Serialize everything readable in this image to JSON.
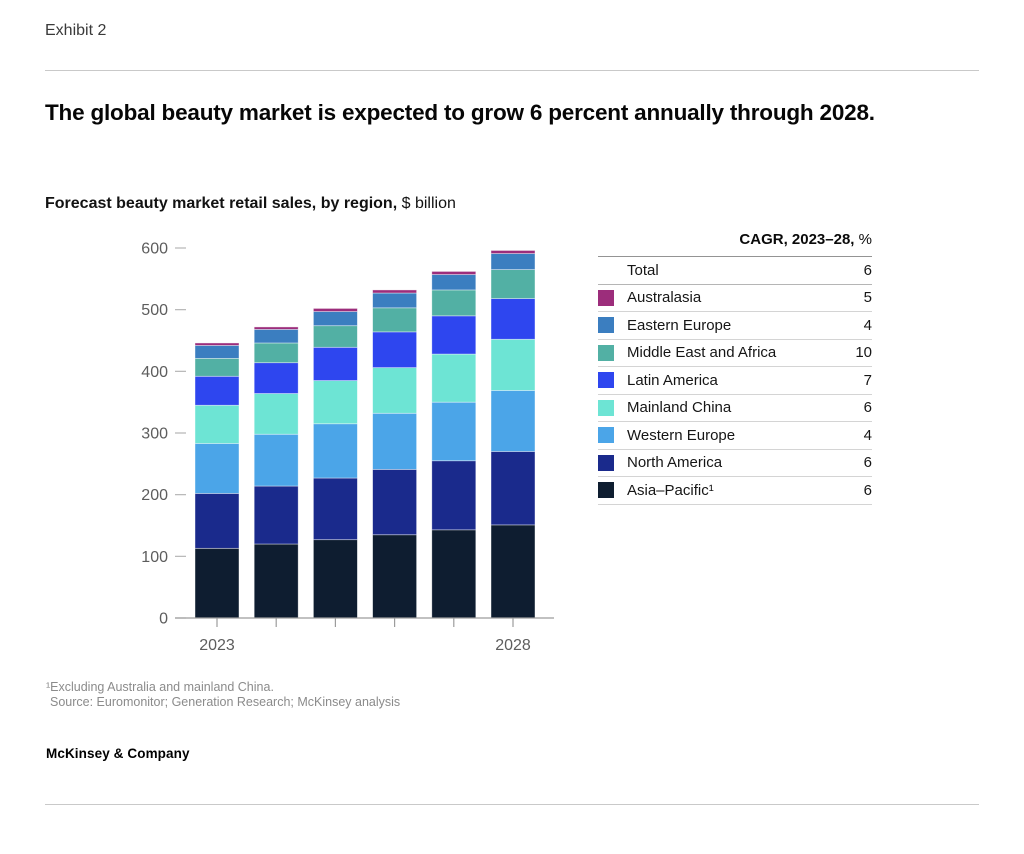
{
  "exhibit_label": "Exhibit 2",
  "title": "The global beauty market is expected to grow 6 percent annually through 2028.",
  "subtitle": {
    "bold": "Forecast beauty market retail sales, by region,",
    "unit": " $ billion"
  },
  "chart_data": {
    "type": "bar",
    "stacked": true,
    "title": "Forecast beauty market retail sales, by region, $ billion",
    "categories": [
      "2023",
      "2024",
      "2025",
      "2026",
      "2027",
      "2028"
    ],
    "x_tick_labels_shown": [
      "2023",
      "2028"
    ],
    "ylim": [
      0,
      600
    ],
    "y_ticks": [
      0,
      100,
      200,
      300,
      400,
      500,
      600
    ],
    "grid": false,
    "legend_position": "right-table",
    "series": [
      {
        "name": "Asia–Pacific¹",
        "color": "#0e1d30",
        "cagr_2023_28_pct": 6,
        "values": [
          113,
          120,
          127,
          135,
          143,
          151
        ]
      },
      {
        "name": "North America",
        "color": "#1a2a8c",
        "cagr_2023_28_pct": 6,
        "values": [
          89,
          94,
          100,
          106,
          112,
          119
        ]
      },
      {
        "name": "Western Europe",
        "color": "#4ba5e8",
        "cagr_2023_28_pct": 4,
        "values": [
          81,
          84,
          88,
          91,
          95,
          99
        ]
      },
      {
        "name": "Mainland China",
        "color": "#6de4d4",
        "cagr_2023_28_pct": 6,
        "values": [
          62,
          66,
          70,
          74,
          78,
          83
        ]
      },
      {
        "name": "Latin America",
        "color": "#2e46ef",
        "cagr_2023_28_pct": 7,
        "values": [
          47,
          50,
          54,
          58,
          62,
          66
        ]
      },
      {
        "name": "Middle East and Africa",
        "color": "#52b0a4",
        "cagr_2023_28_pct": 10,
        "values": [
          29,
          32,
          35,
          39,
          42,
          47
        ]
      },
      {
        "name": "Eastern Europe",
        "color": "#3b7ec0",
        "cagr_2023_28_pct": 4,
        "values": [
          21,
          22,
          23,
          24,
          25,
          26
        ]
      },
      {
        "name": "Australasia",
        "color": "#9c2d7b",
        "cagr_2023_28_pct": 5,
        "values": [
          4,
          4,
          5,
          5,
          5,
          5
        ]
      }
    ],
    "totals_by_year": [
      446,
      472,
      502,
      532,
      562,
      596
    ]
  },
  "legend_table": {
    "header": {
      "bold": "CAGR, 2023–28,",
      "unit": " %"
    },
    "rows": [
      {
        "label": "Total",
        "value": "6",
        "color": null
      },
      {
        "label": "Australasia",
        "value": "5",
        "color": "#9c2d7b"
      },
      {
        "label": "Eastern Europe",
        "value": "4",
        "color": "#3b7ec0"
      },
      {
        "label": "Middle East and Africa",
        "value": "10",
        "color": "#52b0a4"
      },
      {
        "label": "Latin America",
        "value": "7",
        "color": "#2e46ef"
      },
      {
        "label": "Mainland China",
        "value": "6",
        "color": "#6de4d4"
      },
      {
        "label": "Western Europe",
        "value": "4",
        "color": "#4ba5e8"
      },
      {
        "label": "North America",
        "value": "6",
        "color": "#1a2a8c"
      },
      {
        "label": "Asia–Pacific¹",
        "value": "6",
        "color": "#0e1d30"
      }
    ]
  },
  "footnotes": [
    "¹Excluding Australia and mainland China.",
    "Source: Euromonitor; Generation Research; McKinsey analysis"
  ],
  "brand": "McKinsey & Company"
}
